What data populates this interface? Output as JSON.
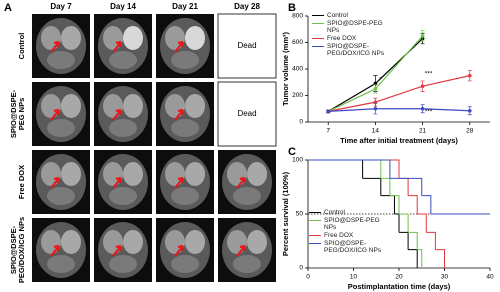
{
  "panel_a": {
    "label": "A",
    "columns": [
      "Day 7",
      "Day 14",
      "Day 21",
      "Day 28"
    ],
    "rows": [
      "Control",
      "SPIO@DSPE-PEG NPs",
      "Free DOX",
      "SPIO@DSPE-PEG/DOX/ICG NPs"
    ],
    "dead": "Dead"
  },
  "chart_data": [
    {
      "type": "line",
      "panel": "B",
      "xlabel": "Time after initial treatment (days)",
      "ylabel": "Tumor volume (mm³)",
      "x": [
        7,
        14,
        21,
        28
      ],
      "xlim": [
        4,
        31
      ],
      "xticks": [
        7,
        14,
        21,
        28
      ],
      "ylim": [
        0,
        800
      ],
      "yticks": [
        0,
        200,
        400,
        600,
        800
      ],
      "annotations": [
        "*",
        "***",
        "***"
      ],
      "series": [
        {
          "name": "Control",
          "color": "#000000",
          "values": [
            80,
            290,
            630,
            null
          ],
          "errors": [
            10,
            60,
            40,
            null
          ]
        },
        {
          "name": "SPIO@DSPE-PEG NPs",
          "color": "#6cc24a",
          "values": [
            80,
            250,
            650,
            null
          ],
          "errors": [
            10,
            30,
            40,
            null
          ]
        },
        {
          "name": "Free DOX",
          "color": "#e0393e",
          "values": [
            80,
            150,
            270,
            350
          ],
          "errors": [
            10,
            30,
            40,
            40
          ]
        },
        {
          "name": "SPIO@DSPE-PEG/DOX/ICG NPs",
          "color": "#3b4cc0",
          "values": [
            80,
            100,
            100,
            85
          ],
          "errors": [
            10,
            40,
            30,
            30
          ]
        }
      ]
    },
    {
      "type": "step",
      "panel": "C",
      "xlabel": "Postimplantation time (days)",
      "ylabel": "Percent survival (100%)",
      "xlim": [
        0,
        40
      ],
      "xticks": [
        0,
        10,
        20,
        30,
        40
      ],
      "ylim": [
        0,
        100
      ],
      "yticks": [
        0,
        50,
        100
      ],
      "reference": 50,
      "series": [
        {
          "name": "Control",
          "color": "#000000",
          "x": [
            0,
            12,
            16,
            19,
            20,
            22,
            24
          ],
          "values": [
            100,
            83,
            67,
            50,
            33,
            17,
            0
          ]
        },
        {
          "name": "SPIO@DSPE-PEG NPs",
          "color": "#6cc24a",
          "x": [
            0,
            16,
            18,
            20,
            22,
            24,
            25
          ],
          "values": [
            100,
            83,
            67,
            50,
            33,
            17,
            0
          ]
        },
        {
          "name": "Free DOX",
          "color": "#e0393e",
          "x": [
            0,
            20,
            22,
            24,
            26,
            28,
            30
          ],
          "values": [
            100,
            83,
            67,
            50,
            33,
            17,
            0
          ]
        },
        {
          "name": "SPIO@DSPE-PEG/DOX/ICG NPs",
          "color": "#3b4cc0",
          "x": [
            0,
            18,
            25,
            27,
            40
          ],
          "values": [
            100,
            83,
            67,
            50,
            50
          ]
        }
      ]
    }
  ]
}
